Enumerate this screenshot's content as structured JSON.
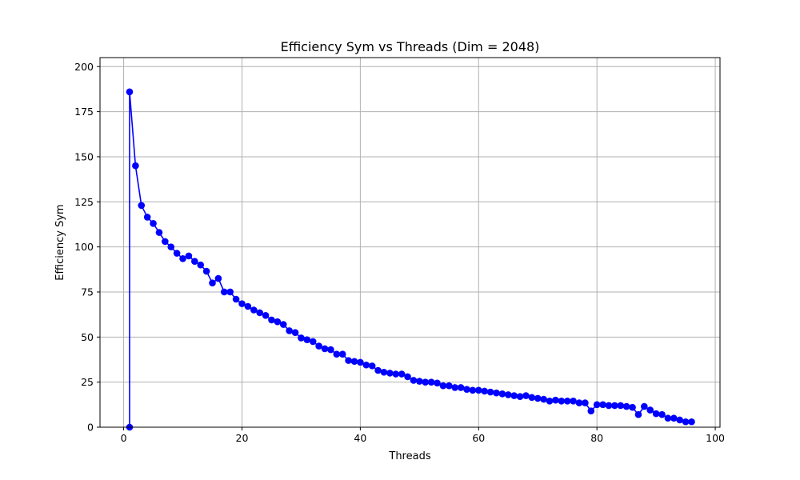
{
  "chart_data": {
    "type": "line",
    "title": "Efficiency Sym vs Threads (Dim = 2048)",
    "xlabel": "Threads",
    "ylabel": "Efficiency Sym",
    "xlim": [
      -4,
      100.8
    ],
    "ylim": [
      0,
      205
    ],
    "xticks": [
      0,
      20,
      40,
      60,
      80,
      100
    ],
    "yticks": [
      0,
      25,
      50,
      75,
      100,
      125,
      150,
      175,
      200
    ],
    "grid": true,
    "series": [
      {
        "name": "Efficiency Sym",
        "color": "#0000ff",
        "marker": "circle",
        "x": [
          1,
          1,
          2,
          3,
          4,
          5,
          6,
          7,
          8,
          9,
          10,
          11,
          12,
          13,
          14,
          15,
          16,
          17,
          18,
          19,
          20,
          21,
          22,
          23,
          24,
          25,
          26,
          27,
          28,
          29,
          30,
          31,
          32,
          33,
          34,
          35,
          36,
          37,
          38,
          39,
          40,
          41,
          42,
          43,
          44,
          45,
          46,
          47,
          48,
          49,
          50,
          51,
          52,
          53,
          54,
          55,
          56,
          57,
          58,
          59,
          60,
          61,
          62,
          63,
          64,
          65,
          66,
          67,
          68,
          69,
          70,
          71,
          72,
          73,
          74,
          75,
          76,
          77,
          78,
          79,
          80,
          81,
          82,
          83,
          84,
          85,
          86,
          87,
          88,
          89,
          90,
          91,
          92,
          93,
          94,
          95,
          96
        ],
        "y": [
          0,
          186,
          145,
          123,
          116.5,
          113,
          108,
          103,
          100,
          96.5,
          93.5,
          95,
          92,
          90,
          86.5,
          80,
          82.5,
          75,
          75,
          71,
          68.5,
          67,
          65,
          63.5,
          62,
          59.5,
          58.5,
          57,
          53.5,
          52.5,
          49.5,
          48.5,
          47.5,
          45,
          43.5,
          43,
          40.5,
          40.5,
          37,
          36.5,
          36,
          34.5,
          34,
          31.5,
          30.5,
          30,
          29.5,
          29.5,
          28,
          26,
          25.5,
          25,
          25,
          24.5,
          23,
          23,
          22,
          22,
          21,
          20.5,
          20.5,
          20,
          19.5,
          19,
          18.5,
          18,
          17.5,
          17,
          17.5,
          16.5,
          16,
          15.5,
          14.5,
          15,
          14.5,
          14.5,
          14.5,
          13.5,
          13.5,
          9,
          12.5,
          12.5,
          12,
          12,
          12,
          11.5,
          11,
          7,
          11.5,
          9.5,
          7.5,
          7,
          5,
          5,
          4,
          3,
          3
        ]
      }
    ]
  }
}
